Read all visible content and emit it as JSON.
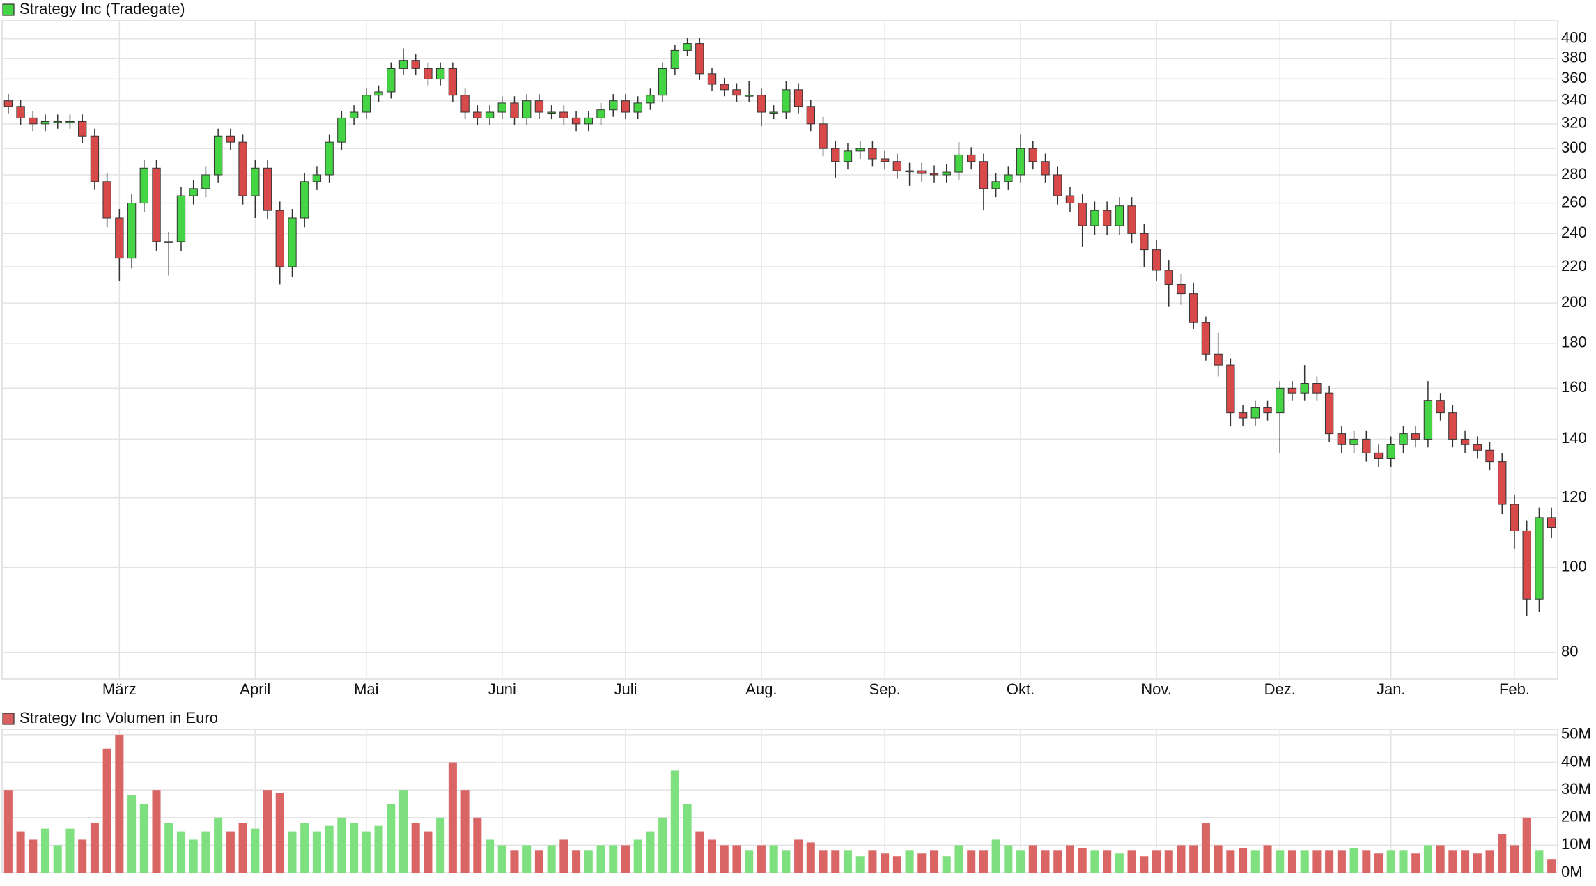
{
  "chart_data": [
    {
      "type": "candlestick",
      "log": true,
      "grid": true,
      "up_color": "#44d444",
      "down_color": "#d84a4a",
      "categories": [
        null,
        null,
        null,
        null,
        null,
        null,
        null,
        null,
        null,
        "März",
        null,
        null,
        null,
        null,
        null,
        null,
        null,
        null,
        null,
        null,
        "April",
        null,
        null,
        null,
        null,
        null,
        null,
        null,
        null,
        "Mai",
        null,
        null,
        null,
        null,
        null,
        null,
        null,
        null,
        null,
        null,
        "Juni",
        null,
        null,
        null,
        null,
        null,
        null,
        null,
        null,
        null,
        "Juli",
        null,
        null,
        null,
        null,
        null,
        null,
        null,
        null,
        null,
        null,
        "Aug.",
        null,
        null,
        null,
        null,
        null,
        null,
        null,
        null,
        null,
        "Sep.",
        null,
        null,
        null,
        null,
        null,
        null,
        null,
        null,
        null,
        null,
        "Okt.",
        null,
        null,
        null,
        null,
        null,
        null,
        null,
        null,
        null,
        null,
        "Nov.",
        null,
        null,
        null,
        null,
        null,
        null,
        null,
        null,
        null,
        "Dez.",
        null,
        null,
        null,
        null,
        null,
        null,
        null,
        null,
        "Jan.",
        null,
        null,
        null,
        null,
        null,
        null,
        null,
        null,
        null,
        "Feb.",
        null,
        null,
        null
      ],
      "series": [
        {
          "name": "Strategy Inc (Tradegate)",
          "color": "#44d444",
          "open": [
            340,
            335,
            325,
            320,
            322,
            322,
            322,
            310,
            275,
            250,
            225,
            260,
            285,
            235,
            235,
            265,
            270,
            280,
            310,
            305,
            265,
            285,
            255,
            220,
            250,
            275,
            280,
            305,
            325,
            330,
            345,
            348,
            370,
            378,
            370,
            360,
            370,
            345,
            330,
            325,
            330,
            338,
            325,
            340,
            330,
            330,
            325,
            320,
            325,
            332,
            340,
            330,
            338,
            345,
            370,
            388,
            395,
            365,
            355,
            350,
            345,
            345,
            330,
            330,
            350,
            335,
            320,
            300,
            290,
            298,
            300,
            292,
            290,
            283,
            283,
            281,
            280,
            282,
            295,
            290,
            270,
            275,
            280,
            300,
            290,
            280,
            265,
            260,
            245,
            255,
            245,
            258,
            240,
            230,
            218,
            210,
            205,
            190,
            175,
            170,
            150,
            148,
            152,
            150,
            160,
            158,
            162,
            158,
            142,
            138,
            140,
            135,
            133,
            138,
            142,
            140,
            155,
            150,
            140,
            138,
            136,
            132,
            118,
            110,
            92,
            114
          ],
          "high": [
            346,
            341,
            331,
            328,
            328,
            328,
            328,
            316,
            281,
            256,
            266,
            291,
            291,
            241,
            271,
            276,
            286,
            316,
            316,
            311,
            291,
            291,
            261,
            256,
            281,
            286,
            311,
            331,
            336,
            351,
            354,
            376,
            390,
            384,
            376,
            376,
            376,
            351,
            336,
            336,
            344,
            344,
            346,
            346,
            336,
            336,
            331,
            331,
            338,
            346,
            346,
            344,
            351,
            376,
            394,
            401,
            401,
            371,
            361,
            356,
            358,
            351,
            336,
            358,
            356,
            341,
            326,
            306,
            304,
            306,
            306,
            298,
            296,
            289,
            289,
            287,
            288,
            305,
            301,
            296,
            281,
            286,
            311,
            306,
            296,
            286,
            271,
            266,
            261,
            261,
            264,
            264,
            246,
            236,
            224,
            216,
            211,
            193,
            185,
            173,
            153,
            155,
            155,
            163,
            163,
            170,
            165,
            161,
            145,
            143,
            143,
            138,
            141,
            145,
            145,
            163,
            158,
            153,
            143,
            141,
            139,
            135,
            121,
            113,
            117,
            117
          ],
          "low": [
            329,
            319,
            314,
            314,
            316,
            316,
            304,
            269,
            244,
            212,
            219,
            254,
            229,
            215,
            229,
            259,
            264,
            274,
            299,
            259,
            250,
            249,
            210,
            214,
            244,
            269,
            274,
            299,
            319,
            324,
            339,
            342,
            364,
            364,
            354,
            354,
            339,
            324,
            319,
            319,
            324,
            319,
            319,
            324,
            324,
            319,
            314,
            314,
            319,
            326,
            324,
            324,
            332,
            339,
            364,
            382,
            359,
            349,
            344,
            339,
            339,
            318,
            324,
            324,
            329,
            314,
            294,
            278,
            284,
            292,
            286,
            284,
            277,
            272,
            275,
            274,
            274,
            276,
            284,
            255,
            264,
            269,
            274,
            284,
            274,
            259,
            254,
            232,
            239,
            239,
            239,
            234,
            220,
            212,
            198,
            199,
            187,
            172,
            165,
            145,
            145,
            145,
            147,
            135,
            155,
            155,
            155,
            139,
            135,
            135,
            132,
            130,
            130,
            135,
            137,
            137,
            147,
            137,
            135,
            133,
            129,
            115,
            105,
            88,
            89,
            108
          ],
          "close": [
            335,
            325,
            320,
            322,
            322,
            322,
            310,
            275,
            250,
            225,
            260,
            285,
            235,
            235,
            265,
            270,
            280,
            310,
            305,
            265,
            285,
            255,
            220,
            250,
            275,
            280,
            305,
            325,
            330,
            345,
            348,
            370,
            378,
            370,
            360,
            370,
            345,
            330,
            325,
            330,
            338,
            325,
            340,
            330,
            330,
            325,
            320,
            325,
            332,
            340,
            330,
            338,
            345,
            370,
            388,
            395,
            365,
            355,
            350,
            345,
            345,
            330,
            330,
            350,
            335,
            320,
            300,
            290,
            298,
            300,
            292,
            290,
            283,
            283,
            281,
            280,
            282,
            295,
            290,
            270,
            275,
            280,
            300,
            290,
            280,
            265,
            260,
            245,
            255,
            245,
            258,
            240,
            230,
            218,
            210,
            205,
            190,
            175,
            170,
            150,
            148,
            152,
            150,
            160,
            158,
            162,
            158,
            142,
            138,
            140,
            135,
            133,
            138,
            142,
            140,
            155,
            150,
            140,
            138,
            136,
            132,
            118,
            110,
            92,
            114,
            111
          ]
        }
      ],
      "ylim": [
        74.6,
        420
      ],
      "yticks": [
        80,
        100,
        120,
        140,
        160,
        180,
        200,
        220,
        240,
        260,
        280,
        300,
        320,
        340,
        360,
        380,
        400
      ]
    },
    {
      "type": "bar",
      "grid": true,
      "series": [
        {
          "name": "Strategy Inc Volumen in Euro",
          "color": "#d86060",
          "values": [
            30000000,
            15000000,
            12000000,
            16000000,
            10000000,
            16000000,
            12000000,
            18000000,
            45000000,
            50000000,
            28000000,
            25000000,
            30000000,
            18000000,
            15000000,
            12000000,
            15000000,
            20000000,
            15000000,
            18000000,
            16000000,
            30000000,
            29000000,
            15000000,
            18000000,
            15000000,
            17000000,
            20000000,
            18000000,
            15000000,
            17000000,
            25000000,
            30000000,
            18000000,
            15000000,
            20000000,
            40000000,
            30000000,
            20000000,
            12000000,
            10000000,
            8000000,
            10000000,
            8000000,
            10000000,
            12000000,
            8000000,
            8000000,
            10000000,
            10000000,
            10000000,
            12000000,
            15000000,
            20000000,
            37000000,
            25000000,
            15000000,
            12000000,
            10000000,
            10000000,
            8000000,
            10000000,
            10000000,
            8000000,
            12000000,
            11000000,
            8000000,
            8000000,
            8000000,
            6000000,
            8000000,
            7000000,
            6000000,
            8000000,
            7000000,
            8000000,
            6000000,
            10000000,
            8000000,
            8000000,
            12000000,
            10000000,
            8000000,
            10000000,
            8000000,
            8000000,
            10000000,
            9000000,
            8000000,
            8000000,
            7000000,
            8000000,
            6000000,
            8000000,
            8000000,
            10000000,
            10000000,
            18000000,
            10000000,
            8000000,
            9000000,
            8000000,
            10000000,
            8000000,
            8000000,
            8000000,
            8000000,
            8000000,
            8000000,
            9000000,
            8000000,
            7000000,
            8000000,
            8000000,
            7000000,
            10000000,
            10000000,
            8000000,
            8000000,
            7000000,
            8000000,
            14000000,
            10000000,
            20000000,
            8000000,
            5000000
          ]
        }
      ],
      "ylim": [
        0,
        52000000
      ],
      "yticks": [
        {
          "value": 0,
          "label": "0M"
        },
        {
          "value": 10000000,
          "label": "10M"
        },
        {
          "value": 20000000,
          "label": "20M"
        },
        {
          "value": 30000000,
          "label": "30M"
        },
        {
          "value": 40000000,
          "label": "40M"
        },
        {
          "value": 50000000,
          "label": "50M"
        }
      ]
    }
  ]
}
